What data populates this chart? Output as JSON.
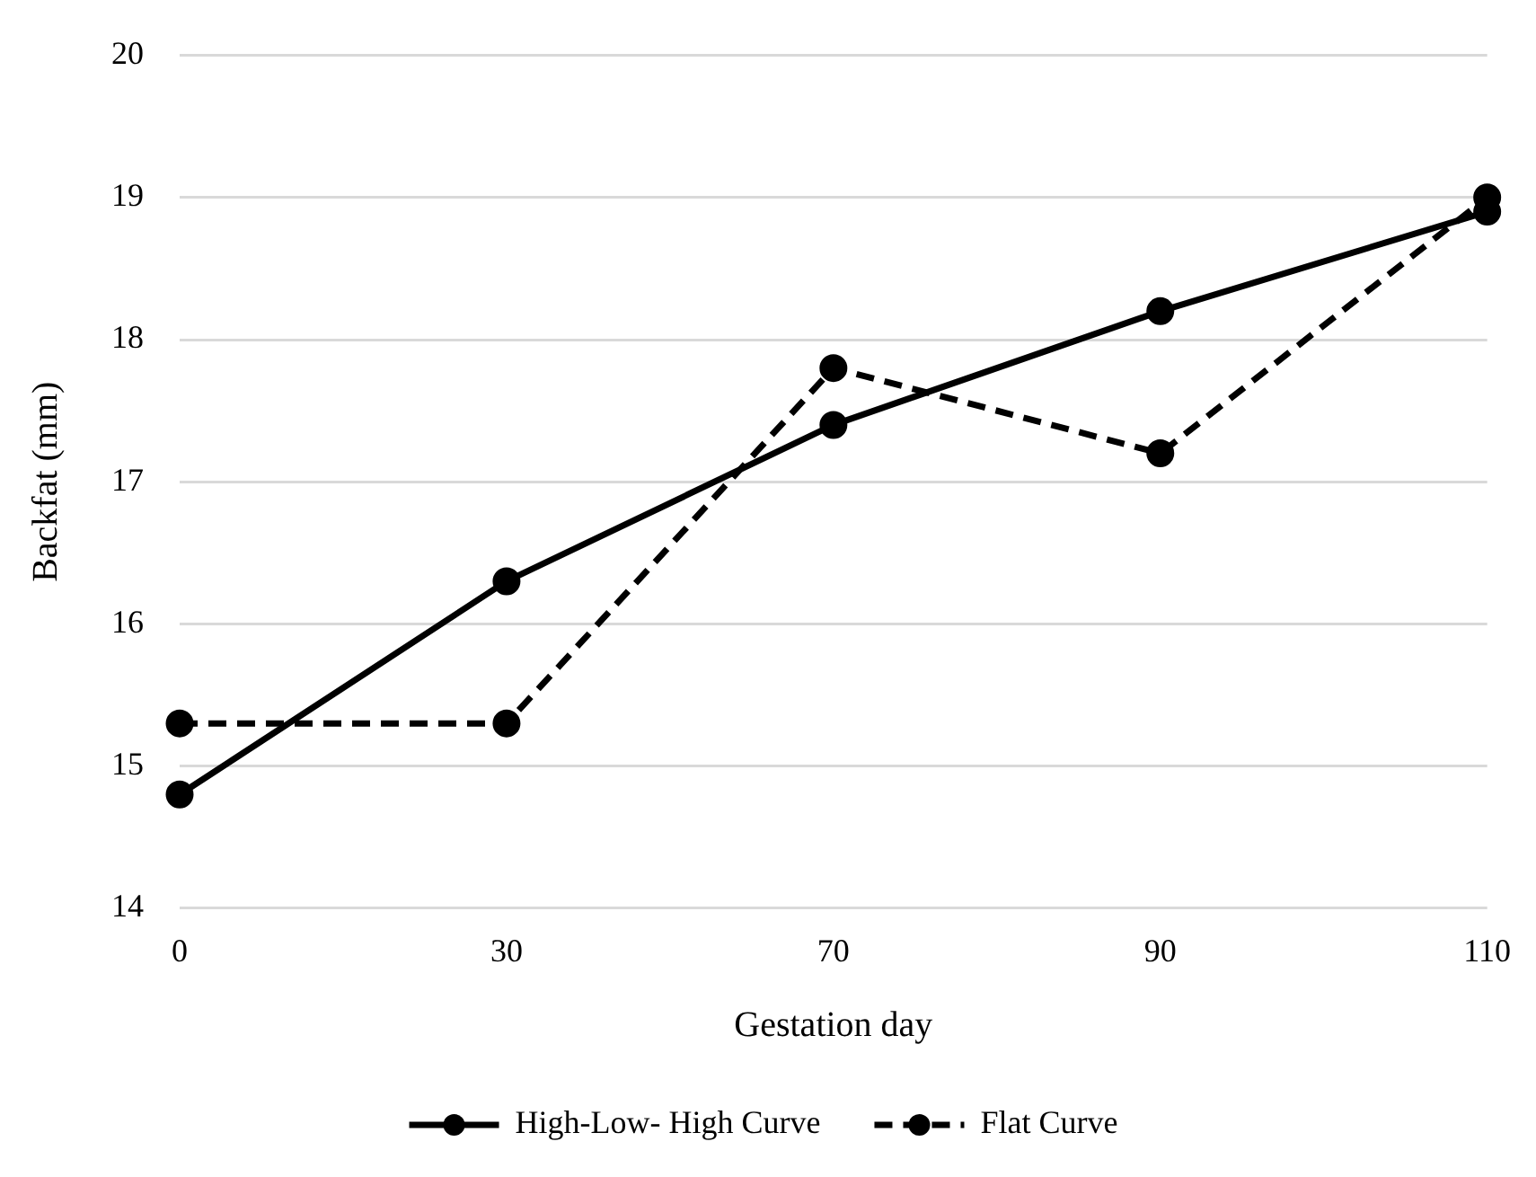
{
  "chart_data": {
    "type": "line",
    "xlabel": "Gestation day",
    "ylabel": "Backfat (mm)",
    "categories": [
      "0",
      "30",
      "70",
      "90",
      "110"
    ],
    "series": [
      {
        "name": "High-Low- High Curve",
        "color": "#000000",
        "values": [
          14.8,
          16.3,
          17.4,
          18.2,
          18.9
        ],
        "line_style": "solid"
      },
      {
        "name": "Flat Curve",
        "color": "#000000",
        "values": [
          15.3,
          15.3,
          17.8,
          17.2,
          19.0
        ],
        "line_style": "dashed"
      }
    ],
    "ylim": [
      14,
      20
    ],
    "yticks": [
      14,
      15,
      16,
      17,
      18,
      19,
      20
    ],
    "grid": "y",
    "legend": "bottom",
    "marker": "circle"
  }
}
